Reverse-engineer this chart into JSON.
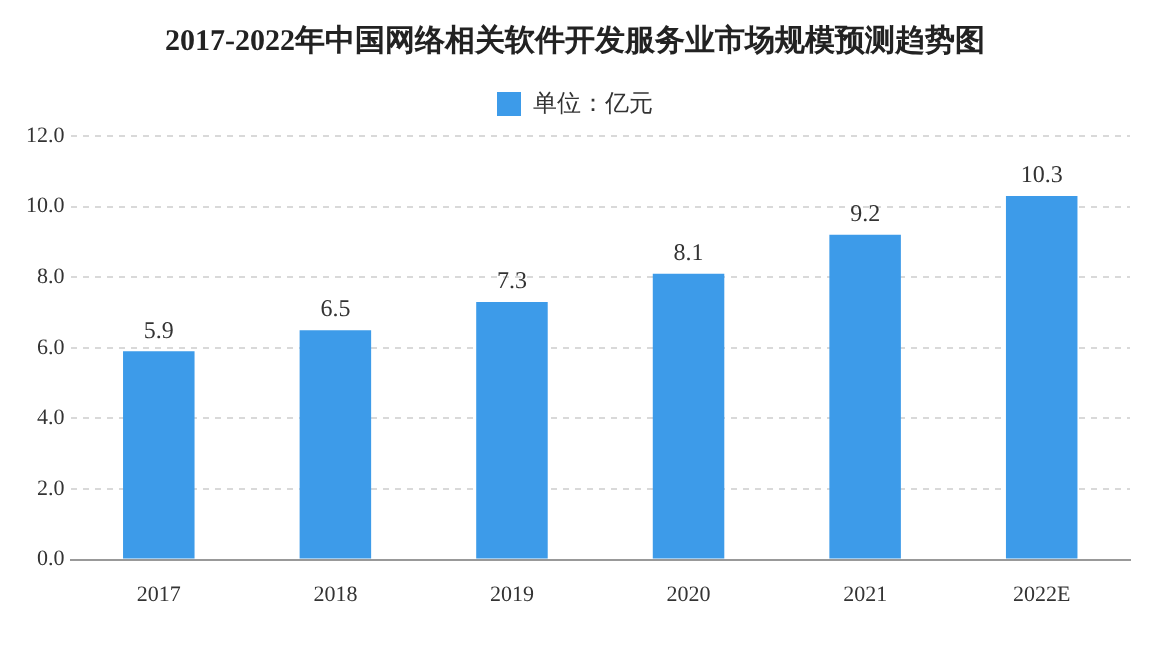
{
  "chart_data": {
    "type": "bar",
    "title": "2017-2022年中国网络相关软件开发服务业市场规模预测趋势图",
    "categories": [
      "2017",
      "2018",
      "2019",
      "2020",
      "2021",
      "2022E"
    ],
    "series": [
      {
        "name": "单位：亿元",
        "color": "#3d9be9",
        "values": [
          5.9,
          6.5,
          7.3,
          8.1,
          9.2,
          10.3
        ]
      }
    ],
    "ylim": [
      0,
      12
    ],
    "yticks": [
      {
        "value": 0,
        "label": "0.0"
      },
      {
        "value": 2,
        "label": "2.0"
      },
      {
        "value": 4,
        "label": "4.0"
      },
      {
        "value": 6,
        "label": "6.0"
      },
      {
        "value": 8,
        "label": "8.0"
      },
      {
        "value": 10,
        "label": "10.0"
      },
      {
        "value": 12,
        "label": "12.0"
      }
    ],
    "grid": "y",
    "legend": "top",
    "data_labels": true
  }
}
